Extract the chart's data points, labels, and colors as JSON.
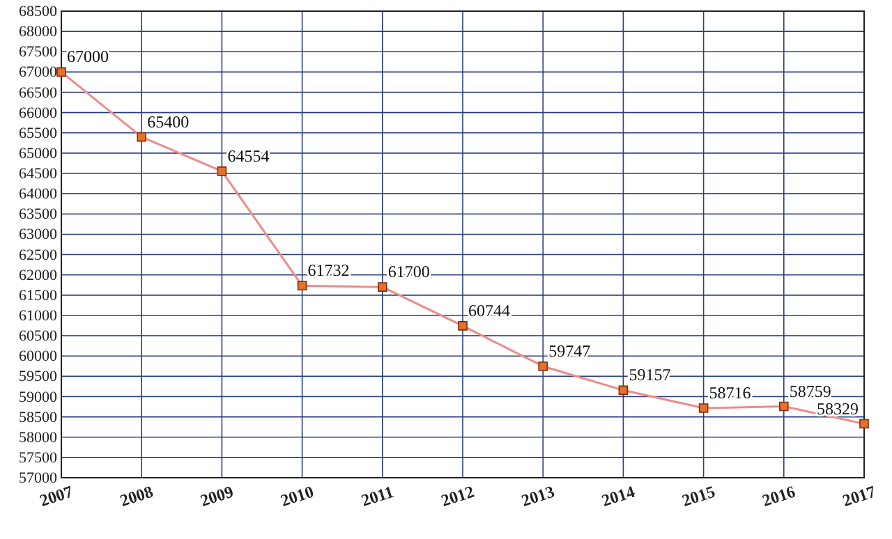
{
  "chart_data": {
    "type": "line",
    "x": [
      2007,
      2008,
      2009,
      2010,
      2011,
      2012,
      2013,
      2014,
      2015,
      2016,
      2017
    ],
    "series": [
      {
        "color": "#f08a8a",
        "values": [
          67000,
          65400,
          64554,
          61732,
          61700,
          60744,
          59747,
          59157,
          58716,
          58759,
          58329
        ]
      }
    ],
    "xlim": [
      2007,
      2017
    ],
    "xticks": [
      2007,
      2008,
      2009,
      2010,
      2011,
      2012,
      2013,
      2014,
      2015,
      2016,
      2017
    ],
    "ylim": [
      57000,
      68500
    ],
    "yticks": [
      57000,
      57500,
      58000,
      58500,
      59000,
      59500,
      60000,
      60500,
      61000,
      61500,
      62000,
      62500,
      63000,
      63500,
      64000,
      64500,
      65000,
      65500,
      66000,
      66500,
      67000,
      67500,
      68000,
      68500
    ],
    "grid": true,
    "marker": "square",
    "line_style": "solid",
    "data_labels": true
  }
}
